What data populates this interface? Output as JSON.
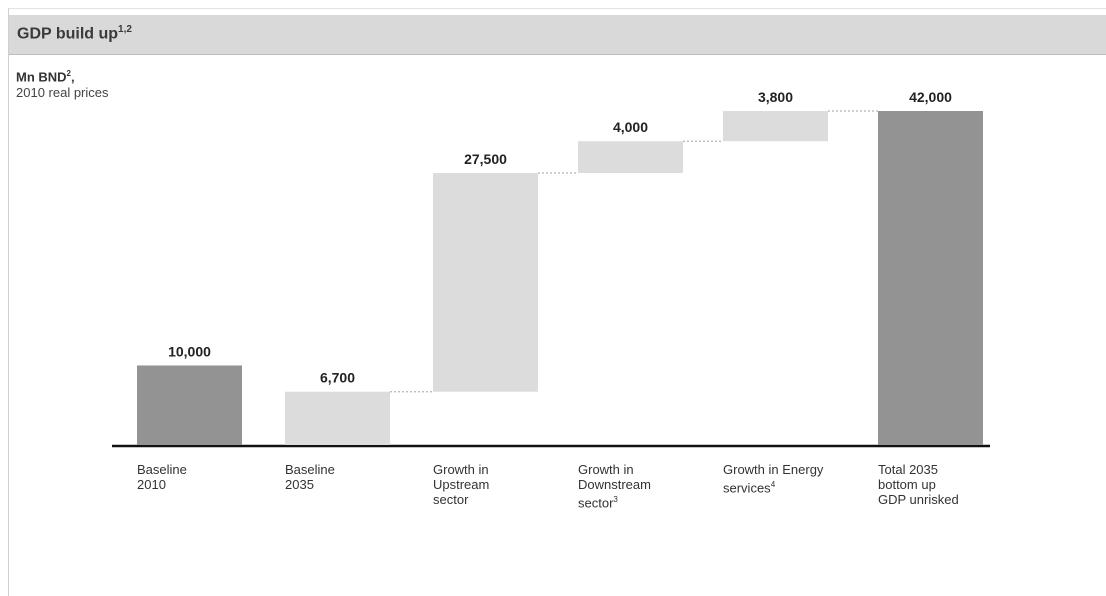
{
  "header": {
    "title": "GDP build up",
    "title_sup": "1,2"
  },
  "unit": {
    "line1": "Mn BND",
    "line1_sup": "2",
    "line1_suffix": ",",
    "line2": "2010 real prices"
  },
  "chart_data": {
    "type": "bar",
    "subtype": "waterfall",
    "categories": [
      "Baseline\n2010",
      "Baseline\n2035",
      "Growth in\nUpstream\nsector",
      "Growth in\nDownstream\nsector",
      "Growth in Energy\nservices",
      "Total 2035\nbottom up\nGDP unrisked"
    ],
    "category_sups": [
      "",
      "",
      "",
      "3",
      "4",
      ""
    ],
    "values": [
      10000,
      6700,
      27500,
      4000,
      3800,
      42000
    ],
    "bases": [
      0,
      0,
      6700,
      34200,
      38200,
      0
    ],
    "labels": [
      "10,000",
      "6,700",
      "27,500",
      "4,000",
      "3,800",
      "42,000"
    ],
    "bar_kinds": [
      "total",
      "step",
      "step",
      "step",
      "step",
      "total"
    ],
    "ylim": [
      0,
      42000
    ],
    "grid": false,
    "colors": {
      "total": "#939393",
      "step": "#dcdcdc",
      "axis": "#111111",
      "connector": "#b5b5b5"
    }
  }
}
